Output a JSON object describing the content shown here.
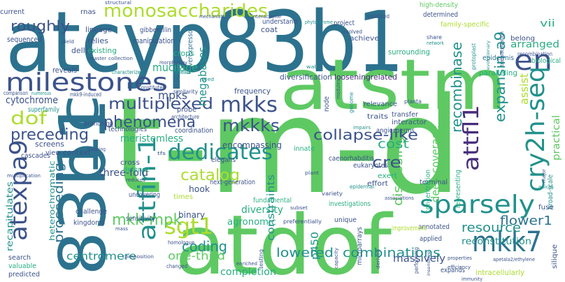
{
  "palette": {
    "dark_purple": "#472c7a",
    "purple": "#3b528b",
    "blue": "#2c728e",
    "teal": "#21918c",
    "green": "#28ae80",
    "light_green": "#5ec962",
    "lime": "#addc30"
  },
  "words": [
    {
      "text": "atcyp83b1",
      "color": "blue"
    },
    {
      "text": "t-m-d",
      "color": "light_green"
    },
    {
      "text": "83b1",
      "color": "blue"
    },
    {
      "text": "atdof",
      "color": "light_green"
    },
    {
      "text": "atstm",
      "color": "light_green"
    },
    {
      "text": "milestones",
      "color": "purple"
    },
    {
      "text": "1c",
      "color": "blue"
    },
    {
      "text": "en",
      "color": "purple"
    },
    {
      "text": "monosaccharides",
      "color": "lime"
    },
    {
      "text": "cry2h-seq",
      "color": "teal"
    },
    {
      "text": "sparsely",
      "color": "teal"
    },
    {
      "text": "atexpa9",
      "color": "purple"
    },
    {
      "text": "attfin-1",
      "color": "teal"
    },
    {
      "text": "mkk7",
      "color": "blue"
    },
    {
      "text": "mkks",
      "color": "purple"
    },
    {
      "text": "mkkks",
      "color": "purple"
    },
    {
      "text": "dedicates",
      "color": "teal"
    },
    {
      "text": "sgt1",
      "color": "lime"
    },
    {
      "text": "attfl1",
      "color": "dark_purple"
    },
    {
      "text": "recombinase",
      "color": "teal"
    },
    {
      "text": "expansin-a9",
      "color": "teal"
    },
    {
      "text": "collapse-like",
      "color": "purple"
    },
    {
      "text": "phenomena",
      "color": "purple"
    },
    {
      "text": "multiplexed",
      "color": "purple"
    },
    {
      "text": "preceding",
      "color": "purple"
    },
    {
      "text": "dof",
      "color": "lime"
    },
    {
      "text": "proceeding",
      "color": "blue"
    },
    {
      "text": "catalog",
      "color": "lime"
    },
    {
      "text": "mkk-mpk",
      "color": "light_green"
    },
    {
      "text": "coding",
      "color": "teal"
    },
    {
      "text": "lowered",
      "color": "teal"
    },
    {
      "text": "combinations",
      "color": "teal"
    },
    {
      "text": "centromere",
      "color": "teal"
    },
    {
      "text": "one-third",
      "color": "light_green"
    },
    {
      "text": "completion",
      "color": "green"
    },
    {
      "text": "resource",
      "color": "teal"
    },
    {
      "text": "flower1",
      "color": "blue"
    },
    {
      "text": "deep-coverage",
      "color": "light_green"
    },
    {
      "text": "disclosing",
      "color": "light_green"
    },
    {
      "text": "cre",
      "color": "purple"
    },
    {
      "text": "cost",
      "color": "green"
    },
    {
      "text": "megabases",
      "color": "teal"
    },
    {
      "text": "roughly",
      "color": "purple"
    },
    {
      "text": "vii",
      "color": "green"
    },
    {
      "text": "arranged",
      "color": "green"
    },
    {
      "text": "assist",
      "color": "lime"
    },
    {
      "text": "mucilage",
      "color": "green"
    },
    {
      "text": "mpks",
      "color": "purple"
    },
    {
      "text": "practical",
      "color": "light_green"
    },
    {
      "text": "reconstitution",
      "color": "teal"
    },
    {
      "text": "massively",
      "color": "purple"
    },
    {
      "text": "constraints",
      "color": "teal"
    },
    {
      "text": "p450",
      "color": "teal"
    },
    {
      "text": "recapitulates",
      "color": "teal"
    },
    {
      "text": "heterochromatic",
      "color": "teal"
    },
    {
      "text": "cytochrome",
      "color": "purple"
    },
    {
      "text": "meristemless",
      "color": "green"
    },
    {
      "text": "three-fold",
      "color": "purple"
    },
    {
      "text": "diversity",
      "color": "green"
    },
    {
      "text": "agronomic",
      "color": "green"
    },
    {
      "text": "binary",
      "color": "purple"
    },
    {
      "text": "encompassing",
      "color": "purple"
    },
    {
      "text": "hook",
      "color": "purple"
    },
    {
      "text": "dellas",
      "color": "purple"
    },
    {
      "text": "relies",
      "color": "purple"
    },
    {
      "text": "existing",
      "color": "green"
    },
    {
      "text": "manipulation",
      "color": "purple"
    },
    {
      "text": "crops",
      "color": "green"
    },
    {
      "text": "overexpressors",
      "color": "blue"
    },
    {
      "text": "diversification",
      "color": "purple"
    },
    {
      "text": "looseningrelated",
      "color": "dark_purple"
    },
    {
      "text": "surrounding",
      "color": "green"
    },
    {
      "text": "achieve",
      "color": "purple"
    },
    {
      "text": "high-density",
      "color": "light_green"
    },
    {
      "text": "family-specific",
      "color": "lime"
    },
    {
      "text": "paralleling",
      "color": "green"
    },
    {
      "text": "epidermis",
      "color": "blue"
    },
    {
      "text": "biological",
      "color": "green"
    },
    {
      "text": "frequency",
      "color": "purple"
    },
    {
      "text": "relevance",
      "color": "purple"
    },
    {
      "text": "interactor",
      "color": "purple"
    },
    {
      "text": "angiosperms",
      "color": "purple"
    },
    {
      "text": "innate",
      "color": "green"
    },
    {
      "text": "elegans",
      "color": "purple"
    },
    {
      "text": "caenorhabditis",
      "color": "purple"
    },
    {
      "text": "next-generation",
      "color": "purple"
    },
    {
      "text": "eukaryotes",
      "color": "purple"
    },
    {
      "text": "fundamental",
      "color": "green"
    },
    {
      "text": "annotated",
      "color": "purple"
    },
    {
      "text": "unique",
      "color": "purple"
    },
    {
      "text": "investigations",
      "color": "green"
    },
    {
      "text": "microarrays",
      "color": "purple"
    },
    {
      "text": "expands",
      "color": "purple"
    },
    {
      "text": "intracellularly",
      "color": "lime"
    },
    {
      "text": "applied",
      "color": "purple"
    },
    {
      "text": "improvement",
      "color": "lime"
    },
    {
      "text": "representing",
      "color": "green"
    },
    {
      "text": "broad-scale",
      "color": "teal"
    },
    {
      "text": "silique",
      "color": "purple"
    },
    {
      "text": "fuse",
      "color": "purple"
    },
    {
      "text": "terminal",
      "color": "purple"
    },
    {
      "text": "exert",
      "color": "green"
    },
    {
      "text": "defense",
      "color": "green"
    },
    {
      "text": "cross",
      "color": "purple"
    },
    {
      "text": "context",
      "color": "purple"
    },
    {
      "text": "view",
      "color": "purple"
    },
    {
      "text": "screens",
      "color": "purple"
    },
    {
      "text": "cascades",
      "color": "purple"
    },
    {
      "text": "kingdoms",
      "color": "purple"
    },
    {
      "text": "challenge",
      "color": "purple"
    },
    {
      "text": "search",
      "color": "purple"
    },
    {
      "text": "valuable",
      "color": "green"
    },
    {
      "text": "predicted",
      "color": "purple"
    },
    {
      "text": "sequenced",
      "color": "purple"
    },
    {
      "text": "lineage",
      "color": "purple"
    },
    {
      "text": "gibberellin",
      "color": "purple"
    },
    {
      "text": "coat",
      "color": "purple"
    },
    {
      "text": "understand",
      "color": "purple"
    },
    {
      "text": "rnas",
      "color": "purple"
    },
    {
      "text": "current",
      "color": "purple"
    },
    {
      "text": "structural",
      "color": "purple"
    },
    {
      "text": "mechanistic",
      "color": "purple"
    },
    {
      "text": "interactome",
      "color": "purple"
    },
    {
      "text": "validated",
      "color": "purple"
    },
    {
      "text": "determined",
      "color": "purple"
    },
    {
      "text": "project",
      "color": "purple"
    },
    {
      "text": "evolved",
      "color": "purple"
    },
    {
      "text": "recombination",
      "color": "purple"
    },
    {
      "text": "belong",
      "color": "purple"
    },
    {
      "text": "share",
      "color": "purple"
    },
    {
      "text": "network",
      "color": "teal"
    },
    {
      "text": "protoplast",
      "color": "teal"
    },
    {
      "text": "transactivation",
      "color": "purple"
    },
    {
      "text": "reveals",
      "color": "purple"
    },
    {
      "text": "characterized",
      "color": "teal"
    },
    {
      "text": "repeats",
      "color": "teal"
    },
    {
      "text": "constitutes",
      "color": "purple"
    },
    {
      "text": "mkk9-induced",
      "color": "purple"
    },
    {
      "text": "comparison",
      "color": "purple"
    },
    {
      "text": "numerous",
      "color": "teal"
    },
    {
      "text": "similarity",
      "color": "purple"
    },
    {
      "text": "architecture",
      "color": "purple"
    },
    {
      "text": "superfamily",
      "color": "teal"
    },
    {
      "text": "branching",
      "color": "purple"
    },
    {
      "text": "technologies",
      "color": "purple"
    },
    {
      "text": "probe",
      "color": "purple"
    },
    {
      "text": "coordination",
      "color": "purple"
    },
    {
      "text": "traits",
      "color": "purple"
    },
    {
      "text": "transfer",
      "color": "purple"
    },
    {
      "text": "node",
      "color": "purple"
    },
    {
      "text": "genome",
      "color": "teal"
    },
    {
      "text": "planta",
      "color": "purple"
    },
    {
      "text": "modules",
      "color": "purple"
    },
    {
      "text": "impairs",
      "color": "teal"
    },
    {
      "text": "mapping",
      "color": "purple"
    },
    {
      "text": "reduces",
      "color": "purple"
    },
    {
      "text": "multiplication",
      "color": "purple"
    },
    {
      "text": "uncovering",
      "color": "purple"
    },
    {
      "text": "times",
      "color": "lime"
    },
    {
      "text": "effort",
      "color": "purple"
    },
    {
      "text": "variety",
      "color": "purple"
    },
    {
      "text": "epidermal",
      "color": "teal"
    },
    {
      "text": "concentration",
      "color": "green"
    },
    {
      "text": "associations",
      "color": "purple"
    },
    {
      "text": "sensitivity",
      "color": "purple"
    },
    {
      "text": "homologue",
      "color": "purple"
    },
    {
      "text": "changed",
      "color": "purple"
    },
    {
      "text": "composition",
      "color": "purple"
    },
    {
      "text": "preferentially",
      "color": "purple"
    },
    {
      "text": "subset",
      "color": "purple"
    },
    {
      "text": "testing",
      "color": "purple"
    },
    {
      "text": "capacity",
      "color": "purple"
    },
    {
      "text": "derived",
      "color": "purple"
    },
    {
      "text": "performing",
      "color": "purple"
    },
    {
      "text": "properties",
      "color": "purple"
    },
    {
      "text": "efficiency",
      "color": "purple"
    },
    {
      "text": "immunity",
      "color": "purple"
    },
    {
      "text": "apetala2/ethylene",
      "color": "purple"
    },
    {
      "text": "insensitive",
      "color": "purple"
    },
    {
      "text": "phytochrome",
      "color": "teal"
    },
    {
      "text": "collection",
      "color": "purple"
    },
    {
      "text": "morphology",
      "color": "purple"
    },
    {
      "text": "yield",
      "color": "purple"
    },
    {
      "text": "master",
      "color": "purple"
    },
    {
      "text": "wall",
      "color": "teal"
    },
    {
      "text": "seed",
      "color": "teal"
    },
    {
      "text": "enriched",
      "color": "purple"
    },
    {
      "text": "tfs",
      "color": "purple"
    },
    {
      "text": "evolutionary",
      "color": "teal"
    },
    {
      "text": "major",
      "color": "purple"
    },
    {
      "text": "apices",
      "color": "teal"
    },
    {
      "text": "mass",
      "color": "purple"
    },
    {
      "text": "plant",
      "color": "purple"
    }
  ]
}
